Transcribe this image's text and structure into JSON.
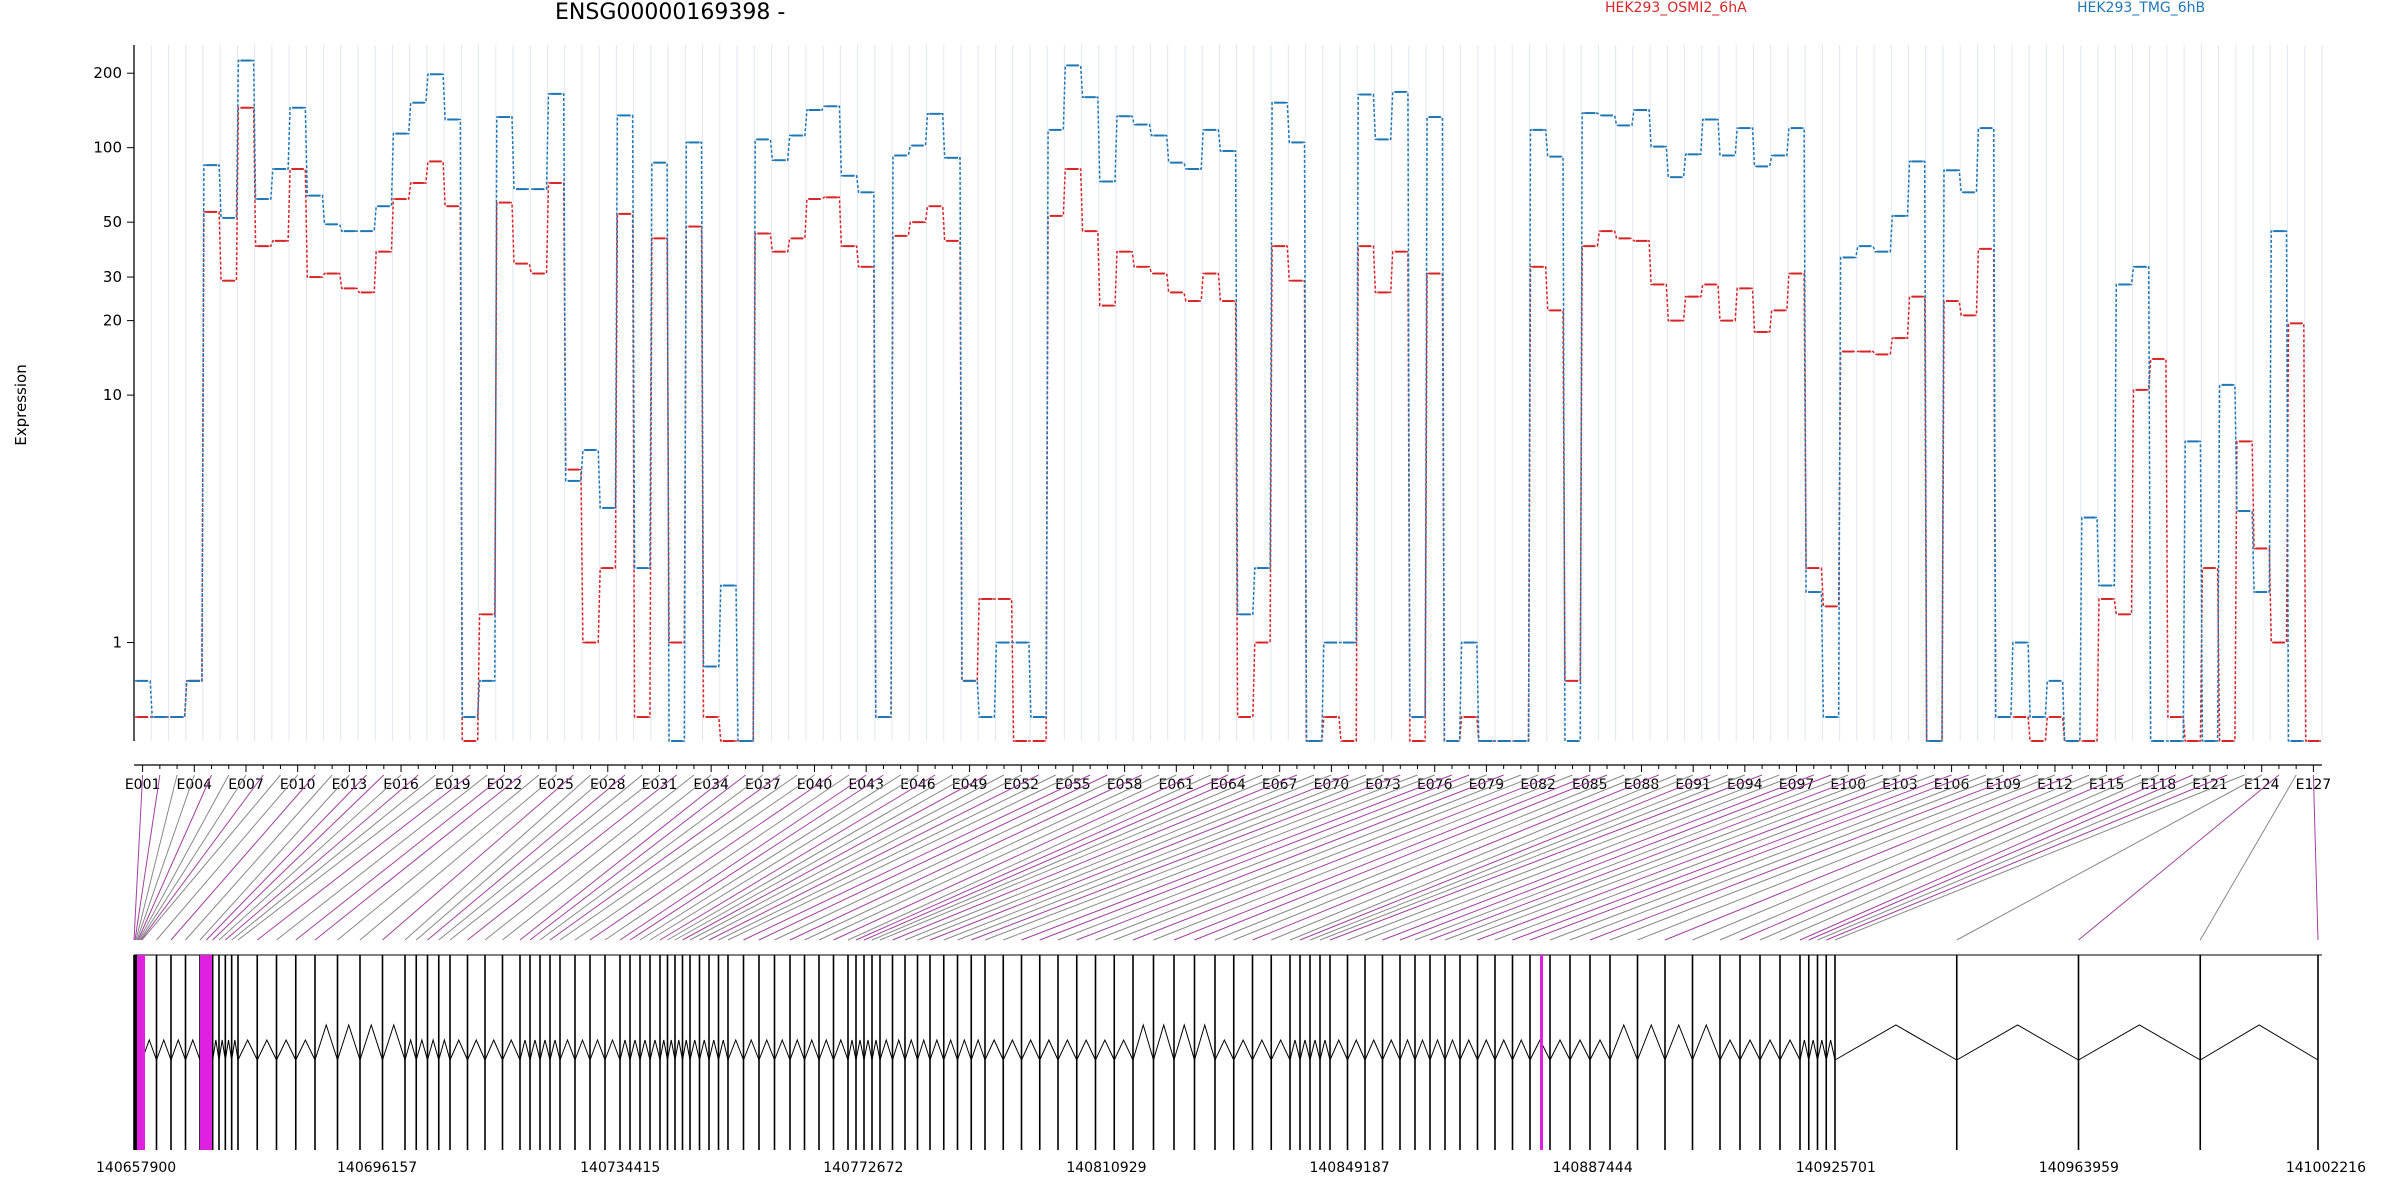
{
  "chart_data": {
    "type": "line",
    "title": "ENSG00000169398 -",
    "xlabel": "",
    "ylabel": "Expression",
    "y_scale": "log",
    "ylim": [
      0.4,
      260
    ],
    "y_ticks": [
      1,
      10,
      20,
      30,
      50,
      100,
      200
    ],
    "grid": "vertical, light",
    "legend_position": "top",
    "colors": {
      "series_a": "#d62728",
      "series_b": "#1f77b4",
      "exon_highlight": "#e020e0"
    },
    "exon_count": 127,
    "exon_tick_labels": [
      "E001",
      "E004",
      "E007",
      "E010",
      "E013",
      "E016",
      "E019",
      "E022",
      "E025",
      "E028",
      "E031",
      "E034",
      "E037",
      "E040",
      "E043",
      "E046",
      "E049",
      "E052",
      "E055",
      "E058",
      "E061",
      "E064",
      "E067",
      "E070",
      "E073",
      "E076",
      "E079",
      "E082",
      "E085",
      "E088",
      "E091",
      "E094",
      "E097",
      "E100",
      "E103",
      "E106",
      "E109",
      "E112",
      "E115",
      "E118",
      "E121",
      "E124",
      "E127"
    ],
    "genomic_coordinate_labels": [
      "140657900",
      "140696157",
      "140734415",
      "140772672",
      "140810929",
      "140849187",
      "140887444",
      "140925701",
      "140963959",
      "141002216"
    ],
    "series": [
      {
        "name": "HEK293_OSMI2_6hA",
        "color": "#d62728",
        "values": [
          0.5,
          0.5,
          0.5,
          0.7,
          55,
          29,
          145,
          40,
          42,
          82,
          30,
          31,
          27,
          26,
          38,
          62,
          72,
          88,
          58,
          0.4,
          1.3,
          60,
          34,
          31,
          72,
          5,
          1,
          2,
          54,
          0.5,
          43,
          1,
          48,
          0.5,
          0.4,
          0.4,
          45,
          38,
          43,
          62,
          63,
          40,
          33,
          0.5,
          44,
          50,
          58,
          42,
          0.7,
          1.5,
          1.5,
          0.4,
          0.4,
          53,
          82,
          46,
          23,
          38,
          33,
          31,
          26,
          24,
          31,
          24,
          0.5,
          1,
          40,
          29,
          0.4,
          0.5,
          0.4,
          40,
          26,
          38,
          0.4,
          31,
          0.4,
          0.5,
          0.4,
          0.4,
          0.4,
          33,
          22,
          0.7,
          40,
          46,
          43,
          42,
          28,
          20,
          25,
          28,
          20,
          27,
          18,
          22,
          31,
          2,
          1.4,
          15,
          15,
          14.6,
          17,
          25,
          0.4,
          24,
          21,
          39,
          0.5,
          0.5,
          0.4,
          0.5,
          0.4,
          0.4,
          1.5,
          1.3,
          10.5,
          14,
          0.5,
          0.4,
          2,
          0.4,
          6.5,
          2.4,
          1,
          19.5,
          0.4
        ]
      },
      {
        "name": "HEK293_TMG_6hB",
        "color": "#1f77b4",
        "values": [
          0.7,
          0.5,
          0.5,
          0.7,
          85,
          52,
          225,
          62,
          82,
          145,
          64,
          49,
          46,
          46,
          58,
          114,
          152,
          198,
          130,
          0.5,
          0.7,
          133,
          68,
          68,
          165,
          4.5,
          6,
          3.5,
          135,
          2,
          87,
          0.4,
          105,
          0.8,
          1.7,
          0.4,
          108,
          89,
          112,
          142,
          147,
          77,
          66,
          0.5,
          93,
          102,
          137,
          91,
          0.7,
          0.5,
          1,
          1,
          0.5,
          118,
          215,
          160,
          73,
          134,
          124,
          112,
          87,
          82,
          118,
          97,
          1.3,
          2,
          152,
          105,
          0.4,
          1,
          1,
          164,
          108,
          168,
          0.5,
          133,
          0.4,
          1,
          0.4,
          0.4,
          0.4,
          118,
          92,
          0.4,
          138,
          135,
          123,
          142,
          101,
          76,
          94,
          130,
          93,
          120,
          84,
          93,
          120,
          1.6,
          0.5,
          36,
          40,
          38,
          53,
          88,
          0.4,
          81,
          66,
          120,
          0.5,
          1,
          0.5,
          0.7,
          0.4,
          3.2,
          1.7,
          28,
          33,
          0.4,
          0.4,
          6.5,
          0.4,
          11,
          3.4,
          1.6,
          46,
          0.4
        ]
      }
    ]
  }
}
